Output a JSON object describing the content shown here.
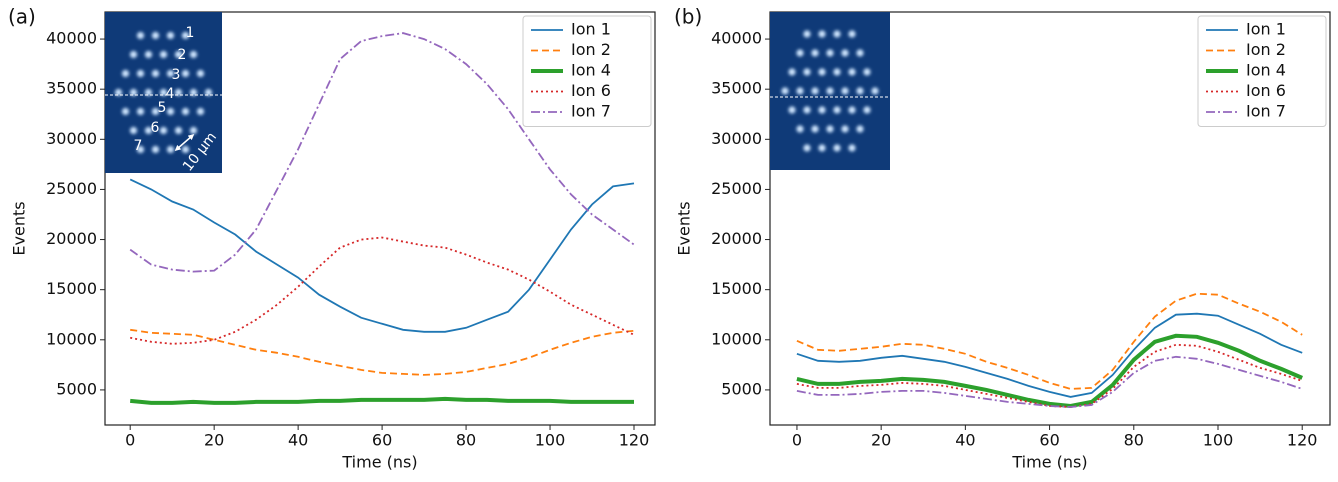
{
  "chart_data": [
    {
      "type": "line",
      "panel_label": "(a)",
      "x_label": "Time (ns)",
      "y_label": "Events",
      "inset_labels": [
        "1",
        "2",
        "3",
        "4",
        "5",
        "6",
        "7"
      ],
      "scale_label": "10 μm",
      "xlim": [
        -6,
        125
      ],
      "ylim": [
        1500,
        42700
      ],
      "xticks": [
        0,
        20,
        40,
        60,
        80,
        100,
        120
      ],
      "yticks": [
        5000,
        10000,
        15000,
        20000,
        25000,
        30000,
        35000,
        40000
      ],
      "legend": "upper right",
      "grid": false,
      "x": [
        0,
        5,
        10,
        15,
        20,
        25,
        30,
        35,
        40,
        45,
        50,
        55,
        60,
        65,
        70,
        75,
        80,
        85,
        90,
        95,
        100,
        105,
        110,
        115,
        120
      ],
      "series": [
        {
          "name": "Ion 1",
          "color": "#1f77b4",
          "style": "solid",
          "width": 1.8,
          "values": [
            26000,
            25000,
            23800,
            23000,
            21700,
            20500,
            18800,
            17500,
            16200,
            14500,
            13300,
            12200,
            11600,
            11000,
            10800,
            10800,
            11200,
            12000,
            12800,
            15000,
            18000,
            21000,
            23500,
            25300,
            25600
          ]
        },
        {
          "name": "Ion 2",
          "color": "#ff7f0e",
          "style": "dashed",
          "width": 1.8,
          "values": [
            11000,
            10700,
            10600,
            10500,
            10000,
            9500,
            9000,
            8700,
            8300,
            7800,
            7400,
            7000,
            6700,
            6600,
            6500,
            6600,
            6800,
            7200,
            7600,
            8200,
            9000,
            9700,
            10300,
            10700,
            10900
          ]
        },
        {
          "name": "Ion 4",
          "color": "#2ca02c",
          "style": "solid",
          "width": 4,
          "values": [
            3900,
            3700,
            3700,
            3800,
            3700,
            3700,
            3800,
            3800,
            3800,
            3900,
            3900,
            4000,
            4000,
            4000,
            4000,
            4100,
            4000,
            4000,
            3900,
            3900,
            3900,
            3800,
            3800,
            3800,
            3800
          ]
        },
        {
          "name": "Ion 6",
          "color": "#d62728",
          "style": "dotted",
          "width": 1.8,
          "values": [
            10200,
            9800,
            9600,
            9700,
            10000,
            10800,
            12000,
            13500,
            15300,
            17300,
            19200,
            20000,
            20200,
            19800,
            19400,
            19200,
            18500,
            17700,
            17000,
            16000,
            14800,
            13500,
            12500,
            11500,
            10500
          ]
        },
        {
          "name": "Ion 7",
          "color": "#9467bd",
          "style": "dashdot",
          "width": 1.8,
          "values": [
            19000,
            17500,
            17000,
            16800,
            16900,
            18500,
            21000,
            25000,
            29000,
            33500,
            38000,
            39800,
            40300,
            40600,
            40000,
            39000,
            37500,
            35500,
            33000,
            30000,
            27000,
            24500,
            22500,
            21000,
            19500
          ]
        }
      ]
    },
    {
      "type": "line",
      "panel_label": "(b)",
      "x_label": "Time (ns)",
      "y_label": "Events",
      "xlim": [
        -6.4,
        126.6
      ],
      "ylim": [
        1500,
        42700
      ],
      "xticks": [
        0,
        20,
        40,
        60,
        80,
        100,
        120
      ],
      "yticks": [
        5000,
        10000,
        15000,
        20000,
        25000,
        30000,
        35000,
        40000
      ],
      "legend": "upper right",
      "grid": false,
      "x": [
        0,
        5,
        10,
        15,
        20,
        25,
        30,
        35,
        40,
        45,
        50,
        55,
        60,
        65,
        70,
        75,
        80,
        85,
        90,
        95,
        100,
        105,
        110,
        115,
        120
      ],
      "series": [
        {
          "name": "Ion 1",
          "color": "#1f77b4",
          "style": "solid",
          "width": 1.8,
          "values": [
            8600,
            7900,
            7800,
            7900,
            8200,
            8400,
            8100,
            7800,
            7300,
            6700,
            6100,
            5400,
            4800,
            4300,
            4700,
            6500,
            9000,
            11200,
            12500,
            12600,
            12400,
            11500,
            10600,
            9500,
            8700
          ]
        },
        {
          "name": "Ion 2",
          "color": "#ff7f0e",
          "style": "dashed",
          "width": 1.8,
          "values": [
            9900,
            9000,
            8900,
            9100,
            9300,
            9600,
            9500,
            9100,
            8600,
            7800,
            7200,
            6500,
            5700,
            5100,
            5200,
            7000,
            9800,
            12300,
            13900,
            14600,
            14500,
            13600,
            12800,
            11800,
            10500
          ]
        },
        {
          "name": "Ion 4",
          "color": "#2ca02c",
          "style": "solid",
          "width": 4,
          "values": [
            6100,
            5600,
            5600,
            5800,
            5900,
            6100,
            6000,
            5800,
            5400,
            5000,
            4500,
            4000,
            3600,
            3400,
            3800,
            5500,
            8000,
            9800,
            10400,
            10300,
            9700,
            8900,
            7900,
            7100,
            6200
          ]
        },
        {
          "name": "Ion 6",
          "color": "#d62728",
          "style": "dotted",
          "width": 1.8,
          "values": [
            5600,
            5200,
            5200,
            5400,
            5500,
            5700,
            5600,
            5400,
            5000,
            4600,
            4200,
            3800,
            3400,
            3300,
            3600,
            5100,
            7300,
            8800,
            9500,
            9400,
            8800,
            8000,
            7200,
            6600,
            5900
          ]
        },
        {
          "name": "Ion 7",
          "color": "#9467bd",
          "style": "dashdot",
          "width": 1.8,
          "values": [
            4900,
            4500,
            4500,
            4600,
            4800,
            4900,
            4900,
            4700,
            4400,
            4100,
            3800,
            3600,
            3400,
            3300,
            3500,
            4800,
            6700,
            7900,
            8300,
            8100,
            7600,
            7000,
            6400,
            5800,
            5100
          ]
        }
      ]
    }
  ]
}
